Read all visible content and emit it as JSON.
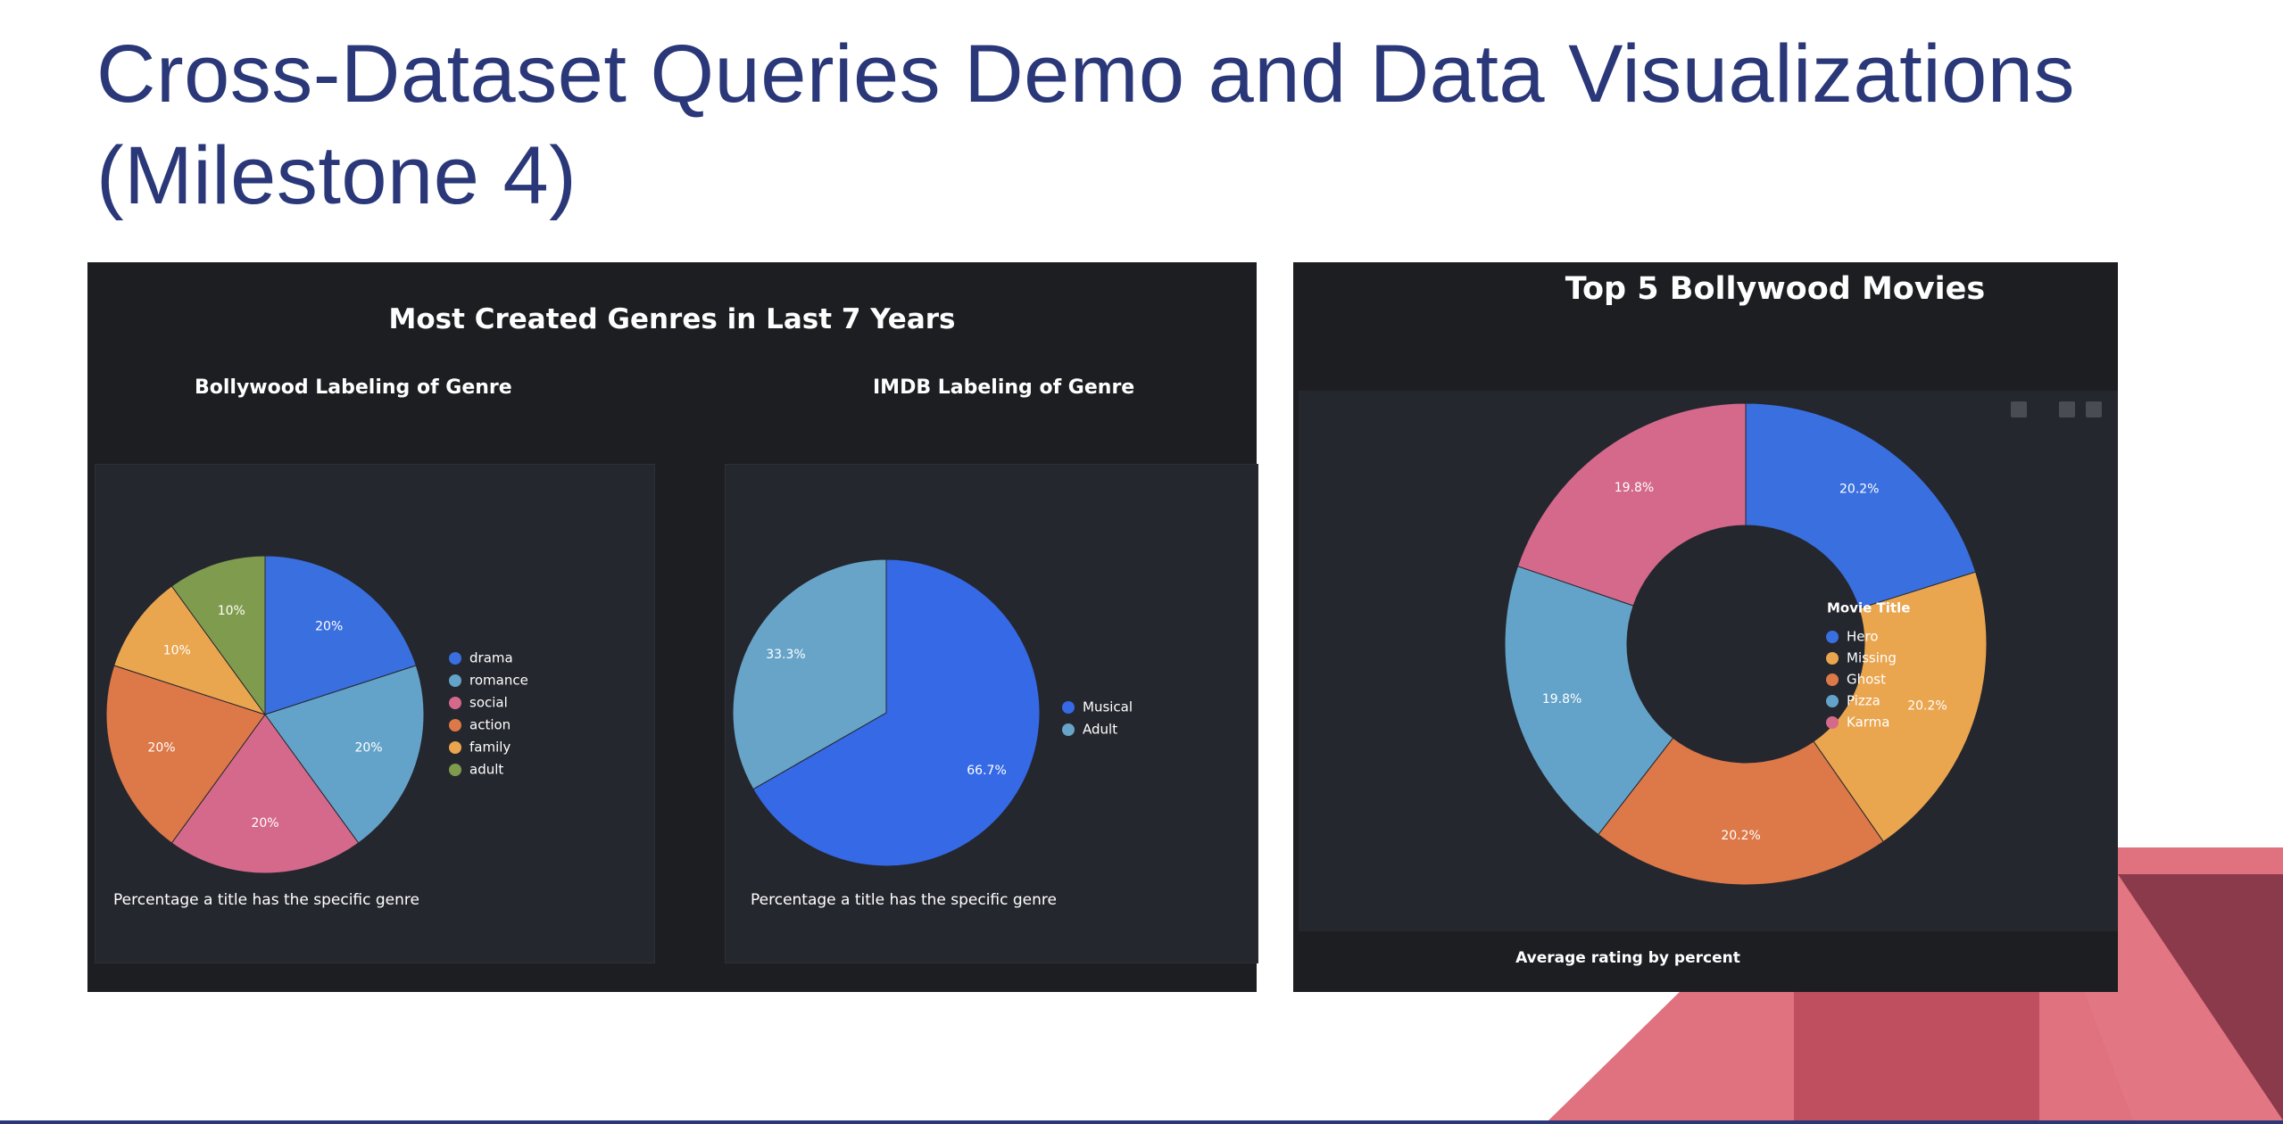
{
  "slide": {
    "title_line1": "Cross-Dataset Queries Demo and Data Visualizations",
    "title_line2": "(Milestone 4)"
  },
  "left_panel": {
    "title": "Most Created Genres in Last 7 Years"
  },
  "right_panel": {
    "title": "Top 5 Bollywood Movies",
    "caption": "Average rating by percent"
  },
  "chart_data": [
    {
      "type": "pie",
      "title": "Bollywood Labeling of Genre",
      "caption": "Percentage a title has the specific genre",
      "categories": [
        "drama",
        "romance",
        "social",
        "action",
        "family",
        "adult"
      ],
      "values": [
        20,
        20,
        20,
        20,
        10,
        10
      ],
      "labels": [
        "20%",
        "20%",
        "20%",
        "20%",
        "10%",
        "10%"
      ],
      "colors": [
        "#3a6fe0",
        "#64a3c9",
        "#d5698c",
        "#dd7848",
        "#eaa54f",
        "#7f9c4e"
      ],
      "legend": "right"
    },
    {
      "type": "pie",
      "title": "IMDB Labeling of Genre",
      "caption": "Percentage a title has the specific genre",
      "categories": [
        "Musical",
        "Adult"
      ],
      "values": [
        66.7,
        33.3
      ],
      "labels": [
        "66.7%",
        "33.3%"
      ],
      "colors": [
        "#3569e6",
        "#67a4c8"
      ],
      "legend": "right"
    },
    {
      "type": "pie",
      "donut": true,
      "title": "Top 5 Bollywood Movies",
      "legend_title": "Movie Title",
      "caption": "Average rating by percent",
      "categories": [
        "Hero",
        "Missing",
        "Ghost",
        "Pizza",
        "Karma"
      ],
      "values": [
        20.2,
        20.2,
        20.2,
        19.8,
        19.8
      ],
      "labels": [
        "20.2%",
        "20.2%",
        "20.2%",
        "19.8%",
        "19.8%"
      ],
      "colors": [
        "#3a6fe0",
        "#eaa54f",
        "#dd7848",
        "#64a3c9",
        "#d5698c"
      ],
      "legend": "right"
    }
  ]
}
